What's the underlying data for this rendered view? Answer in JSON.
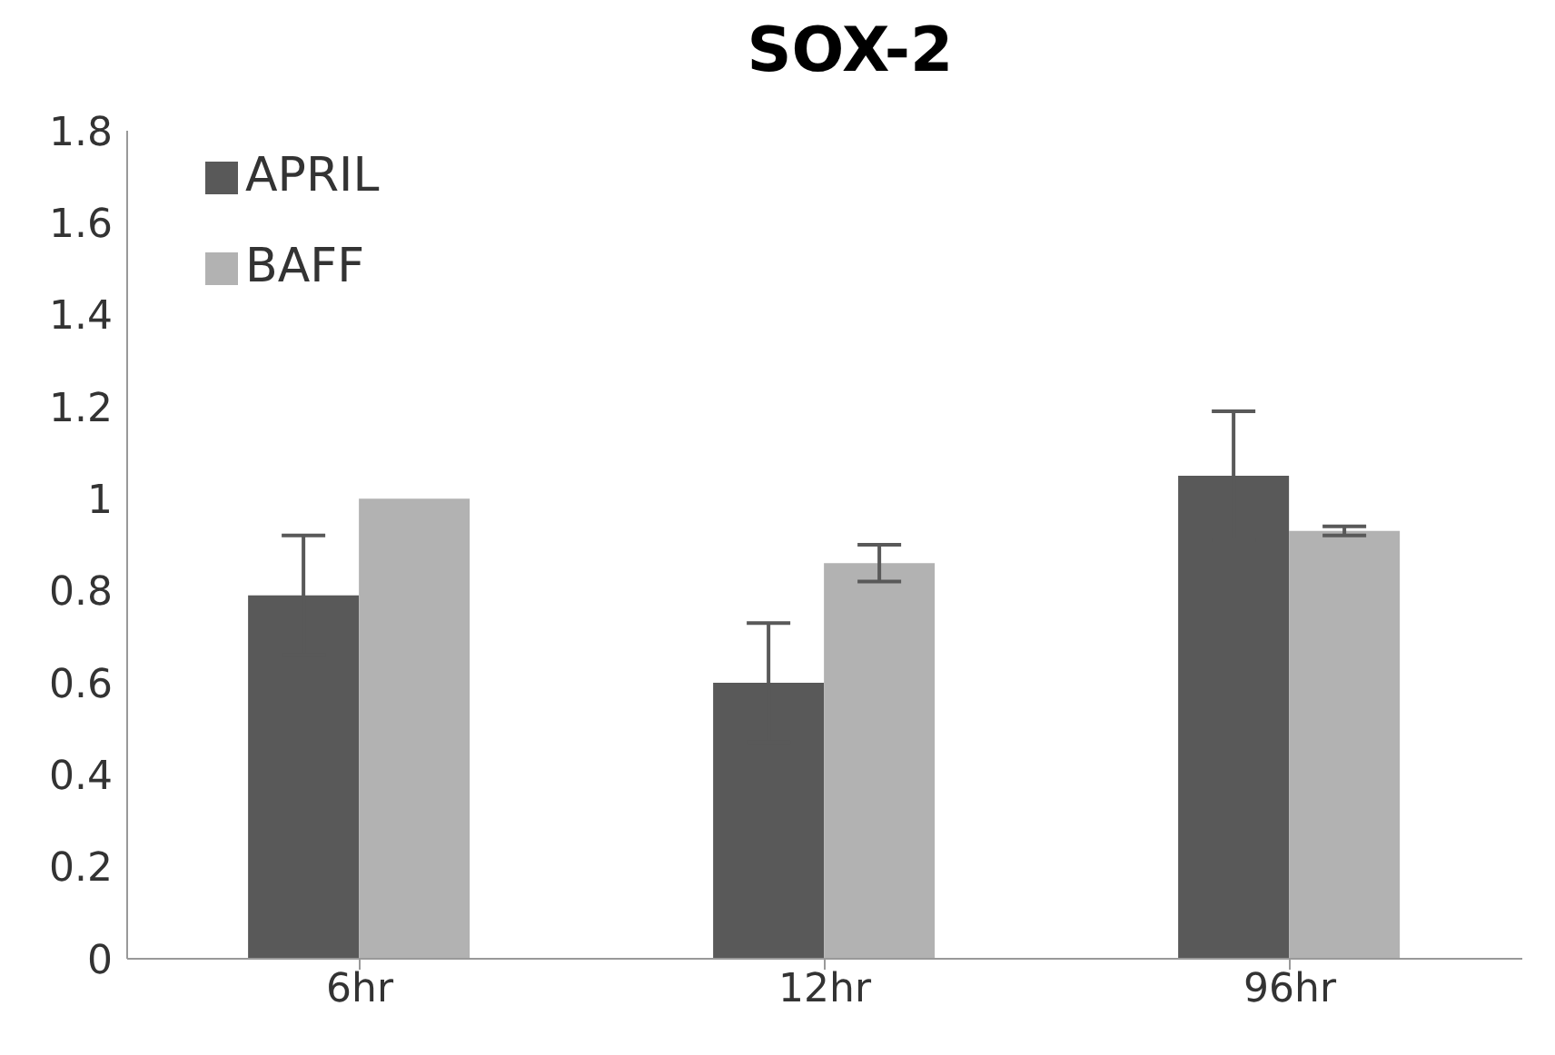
{
  "chart_data": {
    "type": "bar",
    "title": "SOX-2",
    "categories": [
      "6hr",
      "12hr",
      "96hr"
    ],
    "series": [
      {
        "name": "APRIL",
        "color": "#595959",
        "values": [
          0.79,
          0.6,
          1.05
        ],
        "errors": [
          0.13,
          0.13,
          0.14
        ]
      },
      {
        "name": "BAFF",
        "color": "#b2b2b2",
        "values": [
          1.0,
          0.86,
          0.93
        ],
        "errors": [
          null,
          0.04,
          0.01
        ]
      }
    ],
    "ylim": [
      0,
      1.8
    ],
    "yticks": [
      0,
      0.2,
      0.4,
      0.6,
      0.8,
      1,
      1.2,
      1.4,
      1.6,
      1.8
    ],
    "legend": "top left"
  }
}
